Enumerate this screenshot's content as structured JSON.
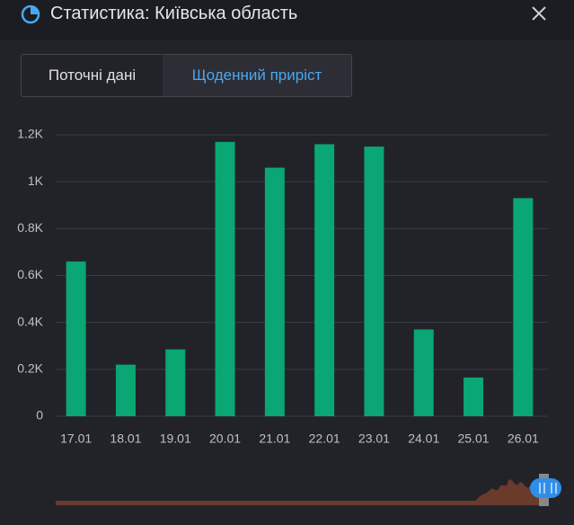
{
  "header": {
    "title": "Статистика: Київська область"
  },
  "tabs": [
    "Поточні дані",
    "Щоденний приріст"
  ],
  "chart_data": {
    "type": "bar",
    "categories": [
      "17.01",
      "18.01",
      "19.01",
      "20.01",
      "21.01",
      "22.01",
      "23.01",
      "24.01",
      "25.01",
      "26.01"
    ],
    "values": [
      660,
      220,
      285,
      1170,
      1060,
      1160,
      1150,
      370,
      165,
      930
    ],
    "color": "#0aa673",
    "ylim": [
      0,
      1200
    ],
    "yticks": [
      0,
      {
        "value": 200,
        "label": "0.2K"
      },
      {
        "value": 400,
        "label": "0.4K"
      },
      {
        "value": 600,
        "label": "0.6K"
      },
      {
        "value": 800,
        "label": "0.8K"
      },
      {
        "value": 1000,
        "label": "1K"
      },
      {
        "value": 1200,
        "label": "1.2K"
      }
    ],
    "grid": true
  }
}
